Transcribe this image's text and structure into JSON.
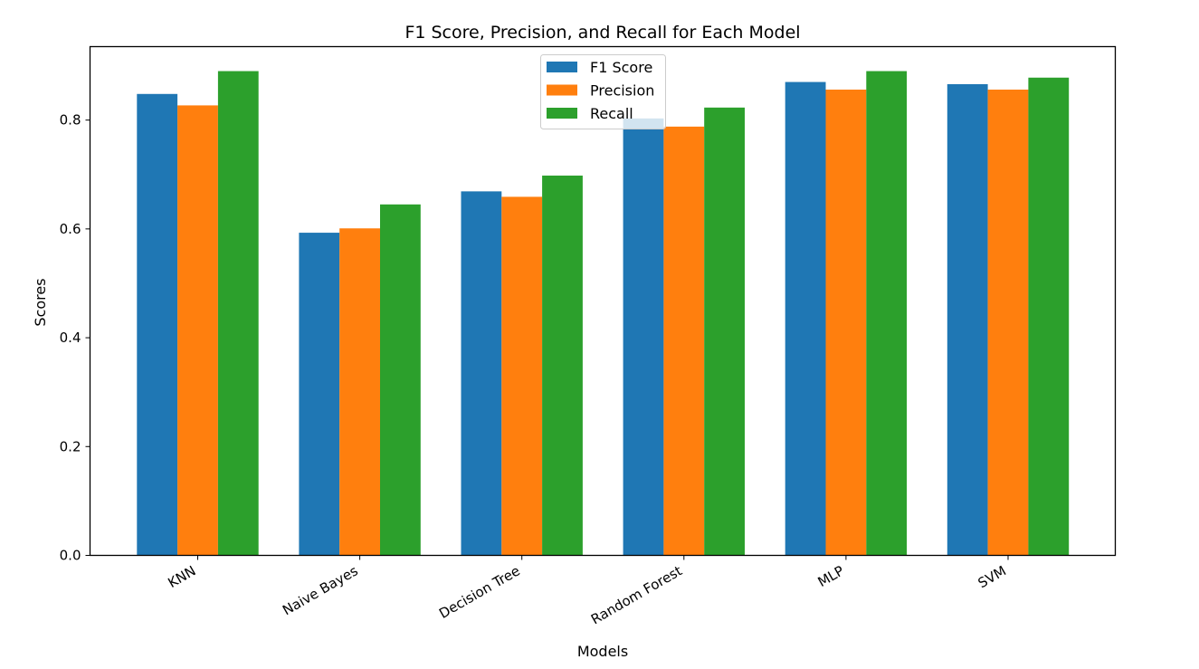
{
  "chart_data": {
    "type": "bar",
    "title": "F1 Score, Precision, and Recall for Each Model",
    "xlabel": "Models",
    "ylabel": "Scores",
    "categories": [
      "KNN",
      "Naive Bayes",
      "Decision Tree",
      "Random Forest",
      "MLP",
      "SVM"
    ],
    "series": [
      {
        "name": "F1 Score",
        "color": "#1f77b4",
        "values": [
          0.848,
          0.593,
          0.669,
          0.803,
          0.87,
          0.866
        ]
      },
      {
        "name": "Precision",
        "color": "#ff7f0e",
        "values": [
          0.827,
          0.601,
          0.659,
          0.788,
          0.856,
          0.856
        ]
      },
      {
        "name": "Recall",
        "color": "#2ca02c",
        "values": [
          0.89,
          0.645,
          0.698,
          0.823,
          0.89,
          0.878
        ]
      }
    ],
    "ylim": [
      0,
      0.935
    ],
    "yticks": [
      0.0,
      0.2,
      0.4,
      0.6,
      0.8
    ],
    "ytick_labels": [
      "0.0",
      "0.2",
      "0.4",
      "0.6",
      "0.8"
    ],
    "xtick_rotation": 30,
    "grid": false,
    "legend_position": "upper center"
  }
}
